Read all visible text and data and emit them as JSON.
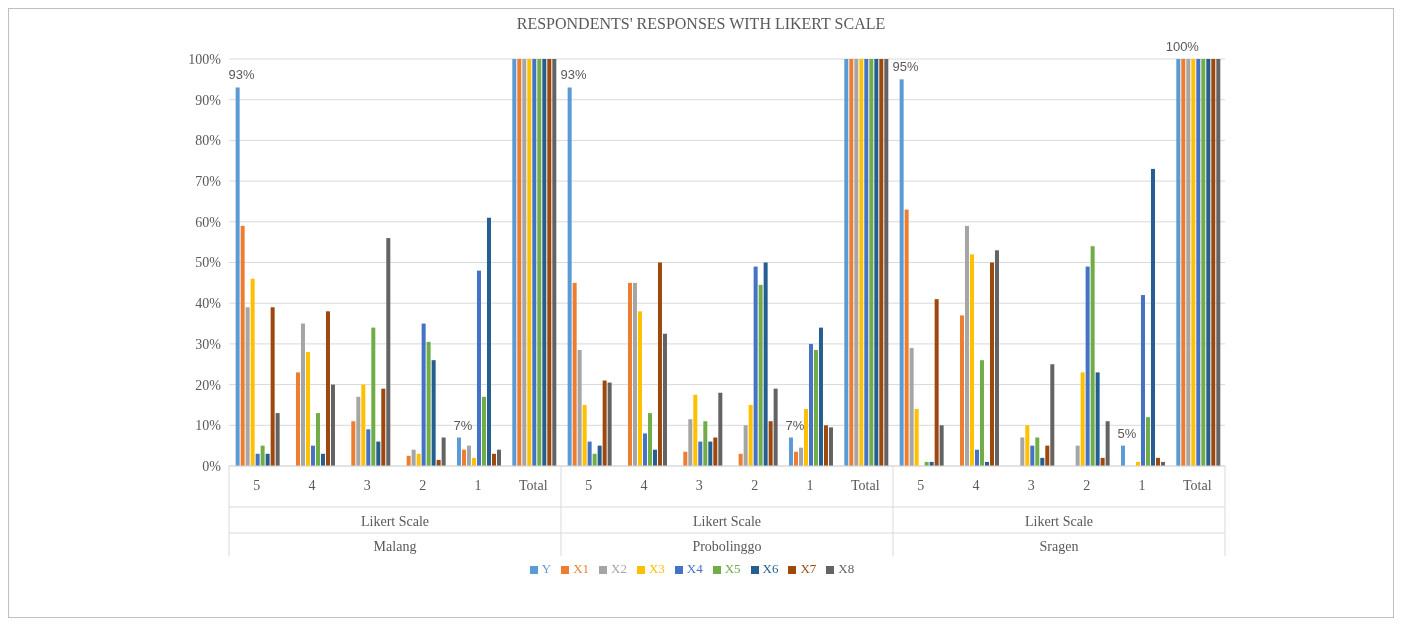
{
  "chart_data": {
    "type": "bar",
    "title": "RESPONDENTS' RESPONSES WITH LIKERT SCALE",
    "categories": [
      "5",
      "4",
      "3",
      "2",
      "1",
      "Total",
      "5",
      "4",
      "3",
      "2",
      "1",
      "Total",
      "5",
      "4",
      "3",
      "2",
      "1",
      "Total"
    ],
    "annotations": [
      "Likert Scale",
      "Malang",
      "Likert Scale",
      "Probolinggo",
      "Likert Scale",
      "Sragen"
    ],
    "series": [
      {
        "name": "Y",
        "color": "#5b9bd5",
        "values": [
          93,
          0,
          0,
          0,
          7,
          100,
          93,
          0,
          0,
          0,
          7,
          100,
          95,
          0,
          0,
          0,
          5,
          100
        ],
        "value_labels": [
          "93%",
          null,
          null,
          null,
          "7%",
          null,
          "93%",
          null,
          null,
          null,
          "7%",
          null,
          "95%",
          null,
          null,
          null,
          "5%",
          "100%"
        ]
      },
      {
        "name": "X1",
        "color": "#ed7d31",
        "values": [
          59,
          23,
          11,
          2.5,
          4,
          100,
          45,
          45,
          3.5,
          3,
          3.5,
          100,
          63,
          37,
          0,
          0,
          0,
          100
        ]
      },
      {
        "name": "X2",
        "color": "#a5a5a5",
        "values": [
          39,
          35,
          17,
          4,
          5,
          100,
          28.5,
          45,
          11.5,
          10,
          4.5,
          100,
          29,
          59,
          7,
          5,
          0,
          100
        ]
      },
      {
        "name": "X3",
        "color": "#ffc000",
        "values": [
          46,
          28,
          20,
          3,
          2,
          100,
          15,
          38,
          17.5,
          15,
          14,
          100,
          14,
          52,
          10,
          23,
          1,
          100
        ]
      },
      {
        "name": "X4",
        "color": "#4472c4",
        "values": [
          3,
          5,
          9,
          35,
          48,
          100,
          6,
          8,
          6,
          49,
          30,
          100,
          0,
          4,
          5,
          49,
          42,
          100
        ]
      },
      {
        "name": "X5",
        "color": "#70ad47",
        "values": [
          5,
          13,
          34,
          30.5,
          17,
          100,
          3,
          13,
          11,
          44.5,
          28.5,
          100,
          1,
          26,
          7,
          54,
          12,
          100
        ]
      },
      {
        "name": "X6",
        "color": "#255e91",
        "values": [
          3,
          3,
          6,
          26,
          61,
          100,
          5,
          4,
          6,
          50,
          34,
          100,
          1,
          1,
          2,
          23,
          73,
          100
        ]
      },
      {
        "name": "X7",
        "color": "#9e480e",
        "values": [
          39,
          38,
          19,
          1.5,
          3,
          100,
          21,
          50,
          7,
          11,
          10,
          100,
          41,
          50,
          5,
          2,
          2,
          100
        ]
      },
      {
        "name": "X8",
        "color": "#636363",
        "values": [
          13,
          20,
          56,
          7,
          4,
          100,
          20.5,
          32.5,
          18,
          19,
          9.5,
          100,
          10,
          53,
          25,
          11,
          1,
          100
        ]
      }
    ],
    "ylim": [
      0,
      100
    ],
    "yticks": [
      {
        "value": 0,
        "label": "0%"
      },
      {
        "value": 10,
        "label": "10%"
      },
      {
        "value": 20,
        "label": "20%"
      },
      {
        "value": 30,
        "label": "30%"
      },
      {
        "value": 40,
        "label": "40%"
      },
      {
        "value": 50,
        "label": "50%"
      },
      {
        "value": 60,
        "label": "60%"
      },
      {
        "value": 70,
        "label": "70%"
      },
      {
        "value": 80,
        "label": "80%"
      },
      {
        "value": 90,
        "label": "90%"
      },
      {
        "value": 100,
        "label": "100%"
      }
    ],
    "grid": "y",
    "legend": "bottom"
  }
}
